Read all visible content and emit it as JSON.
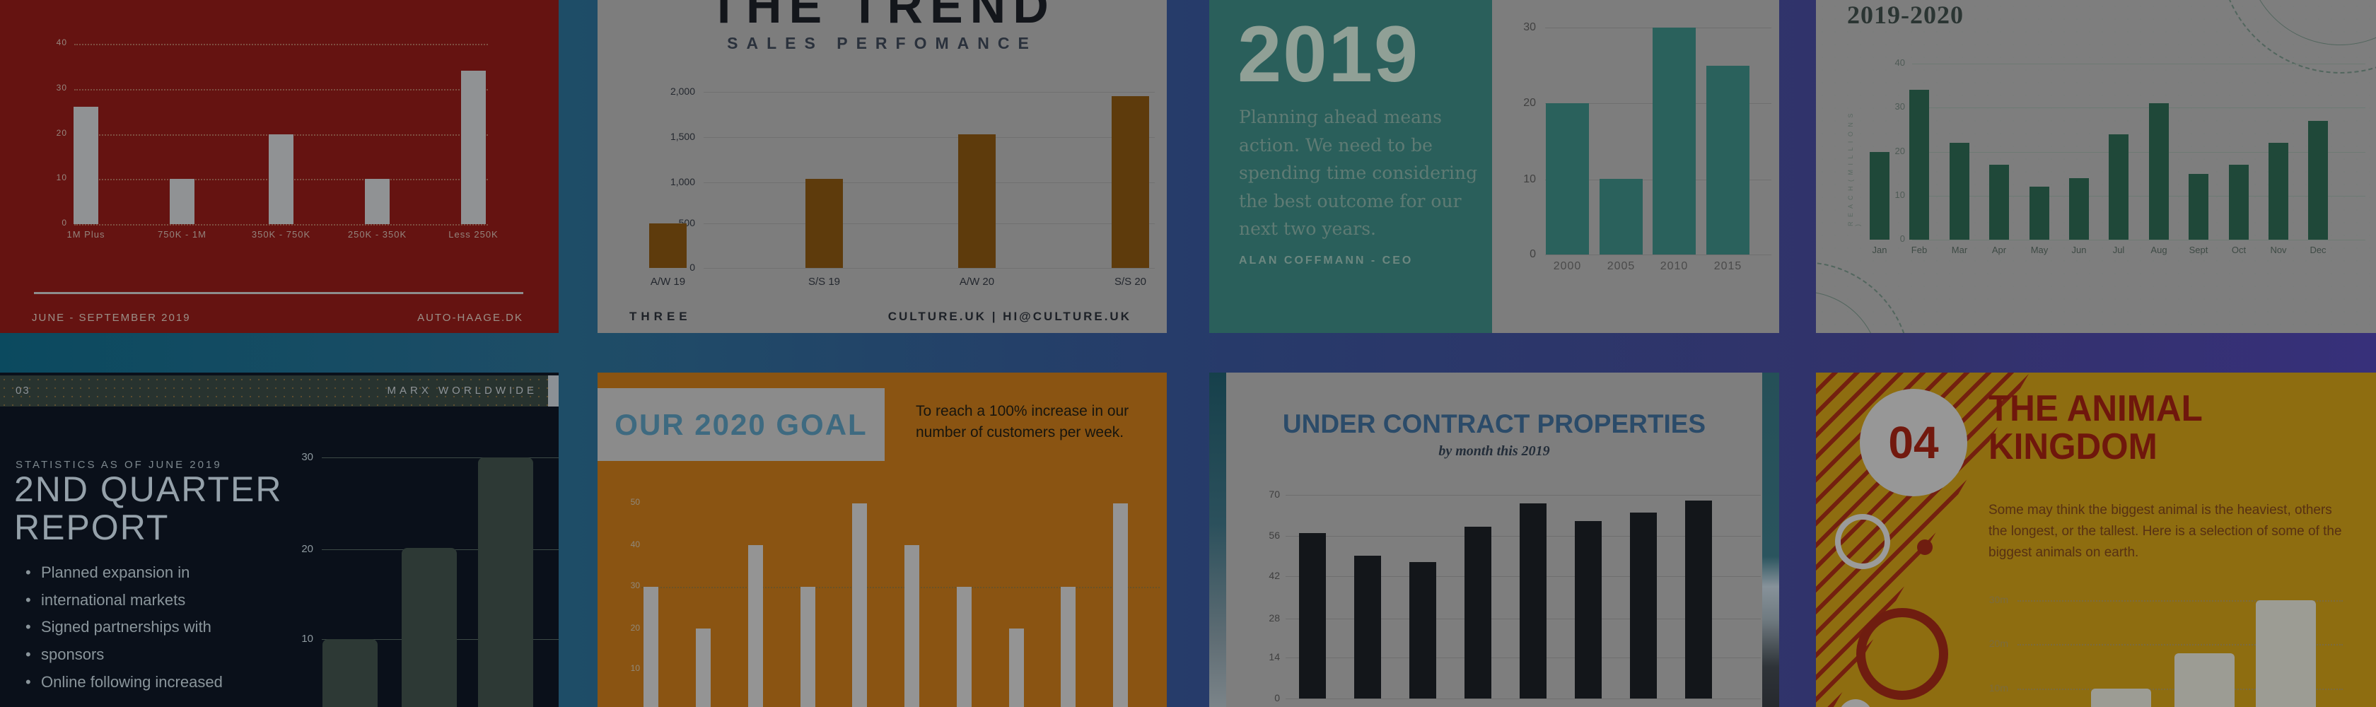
{
  "colors": {
    "background_left": "#0b4a5f",
    "background_right": "#37307a",
    "slide1_bg": "#651311",
    "slide2_bg": "#7d7d7d",
    "slide3_teal": "#2a5f5b",
    "slide4_bg": "#7e7e7e",
    "slide5_bg": "#0a101a",
    "slide6_bg": "#8a5412",
    "slide7_bg": "#7e7e7e",
    "slide8_bg": "#8e6d10"
  },
  "slides": [
    {
      "footer_left": "JUNE - SEPTEMBER 2019",
      "footer_right": "AUTO-HAAGE.DK",
      "chart_data": {
        "type": "bar",
        "categories": [
          "1M Plus",
          "750K - 1M",
          "350K - 750K",
          "250K - 350K",
          "Less 250K"
        ],
        "values": [
          26,
          10,
          20,
          10,
          34
        ],
        "ticks": [
          "40",
          "30",
          "20",
          "10",
          "0"
        ],
        "ylim": [
          0,
          40
        ],
        "bar_color": "#909294",
        "grid": "dotted"
      }
    },
    {
      "title": "THE TREND",
      "subtitle": "SALES PERFOMANCE",
      "footer_left": "THREE",
      "footer_right": "CULTURE.UK | HI@CULTURE.UK",
      "chart_data": {
        "type": "bar",
        "categories": [
          "A/W 19",
          "S/S 19",
          "A/W 20",
          "S/S 20"
        ],
        "values": [
          500,
          1000,
          1500,
          1930
        ],
        "ticks": [
          "2,000",
          "1,500",
          "1,000",
          "500",
          "0"
        ],
        "ylim": [
          0,
          2000
        ],
        "bar_color": "#5e3b0c",
        "grid": "solid"
      }
    },
    {
      "year": "2019",
      "quote_lines": [
        "Planning ahead means",
        "action. We need to be",
        "spending time considering",
        "the best outcome for our",
        "next two years."
      ],
      "byline": "ALAN COFFMANN - CEO",
      "chart_data": {
        "type": "bar",
        "categories": [
          "2000",
          "2005",
          "2010",
          "2015"
        ],
        "values": [
          20,
          10,
          30,
          25
        ],
        "ticks": [
          "30",
          "20",
          "10",
          "0"
        ],
        "ylim": [
          0,
          30
        ],
        "bar_color": "#2a615c",
        "grid": "solid"
      }
    },
    {
      "title": "2019-2020",
      "chart_data": {
        "type": "bar",
        "categories": [
          "Jan",
          "Feb",
          "Mar",
          "Apr",
          "May",
          "Jun",
          "Jul",
          "Aug",
          "Sept",
          "Oct",
          "Nov",
          "Dec"
        ],
        "values": [
          20,
          34,
          22,
          17,
          12,
          14,
          24,
          31,
          15,
          17,
          22,
          27
        ],
        "ticks": [
          "40",
          "30",
          "20",
          "10",
          "0"
        ],
        "ylim": [
          0,
          40
        ],
        "ylabel": "R E A C H   ( M I L L I O N S )",
        "bar_color": "#1f4839",
        "grid": "solid"
      }
    },
    {
      "page_num": "03",
      "brand": "MARX WORLDWIDE",
      "eyebrow": "STATISTICS AS OF JUNE 2019",
      "title_line1": "2ND QUARTER",
      "title_line2": "REPORT",
      "bullets": [
        "Planned expansion in",
        "international markets",
        "Signed partnerships with",
        "sponsors",
        "Online following increased"
      ],
      "chart_data": {
        "type": "bar",
        "categories": [],
        "values": [
          10,
          20,
          30
        ],
        "ticks": [
          "30",
          "20",
          "10"
        ],
        "ylim": [
          0,
          30
        ],
        "bar_color": "#2d3935",
        "grid": "solid"
      }
    },
    {
      "title": "OUR 2020 GOAL",
      "description_line1": "To reach a 100% increase in our",
      "description_line2": "number of customers per week.",
      "chart_data": {
        "type": "bar",
        "categories": [],
        "values": [
          30,
          20,
          40,
          30,
          50,
          40,
          30,
          20,
          30,
          50
        ],
        "ticks": [
          "50",
          "40",
          "30",
          "20",
          "10"
        ],
        "ylim": [
          0,
          50
        ],
        "bar_color": "#949494",
        "grid": "dotted"
      }
    },
    {
      "title": "UNDER CONTRACT PROPERTIES",
      "subtitle": "by month this 2019",
      "chart_data": {
        "type": "bar",
        "categories": [],
        "values": [
          57,
          49,
          47,
          59,
          67,
          61,
          64,
          68
        ],
        "ticks": [
          "70",
          "56",
          "42",
          "28",
          "14",
          "0"
        ],
        "ylim": [
          0,
          70
        ],
        "bar_color": "#13161a",
        "grid": "solid"
      }
    },
    {
      "number": "04",
      "title_line1": "THE ANIMAL",
      "title_line2": "KINGDOM",
      "description_lines": [
        "Some may think the biggest animal is the heaviest, others",
        "the longest, or the tallest. Here is a selection of some of the",
        "biggest animals on earth."
      ],
      "chart_data": {
        "type": "bar",
        "categories": [],
        "values": [
          10,
          18,
          30
        ],
        "ticks": [
          "30m",
          "20m",
          "10m"
        ],
        "ylim": [
          0,
          30
        ],
        "bar_color": "#9c9c94",
        "grid": "dotted"
      }
    }
  ]
}
